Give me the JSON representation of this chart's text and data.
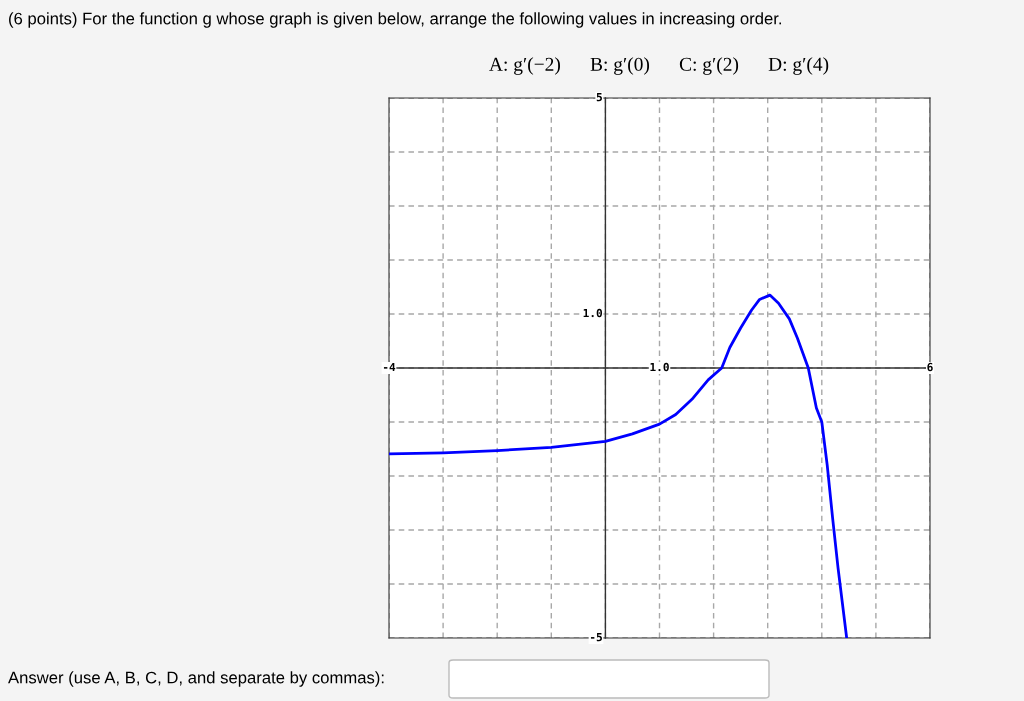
{
  "chart_data": {
    "type": "line",
    "title": "(6 points) For the function g whose graph is given below, arrange the following values in increasing order.",
    "subtitle": "A: g′(−2)      B: g′(0)      C: g′(2)      D: g′(4)",
    "annotations": [
      "Answer (use A, B, C, D, and separate by commas):"
    ],
    "x": [
      -4,
      -3,
      -2,
      -1,
      0,
      0.5,
      1,
      1.3,
      1.6,
      1.9,
      2.15,
      2.3,
      2.5,
      2.7,
      2.85,
      3.04,
      3.2,
      3.4,
      3.55,
      3.75,
      3.9,
      4.0,
      4.1,
      4.2,
      4.3,
      4.46
    ],
    "series": [
      {
        "color": "#0000ff",
        "values": [
          -1.59,
          -1.57,
          -1.53,
          -1.47,
          -1.36,
          -1.22,
          -1.04,
          -0.86,
          -0.58,
          -0.22,
          0,
          0.38,
          0.74,
          1.07,
          1.27,
          1.35,
          1.2,
          0.91,
          0.55,
          0,
          -0.74,
          -1.0,
          -1.8,
          -2.78,
          -3.7,
          -5
        ]
      }
    ],
    "xlim": [
      -4,
      6
    ],
    "ylim": [
      -5,
      5
    ],
    "xticks": [
      {
        "value": -4,
        "label": "-4"
      },
      {
        "value": -3,
        "label": null
      },
      {
        "value": -2,
        "label": null
      },
      {
        "value": -1,
        "label": null
      },
      {
        "value": 0,
        "label": null
      },
      {
        "value": 1,
        "label": "1.0"
      },
      {
        "value": 2,
        "label": null
      },
      {
        "value": 3,
        "label": null
      },
      {
        "value": 4,
        "label": null
      },
      {
        "value": 5,
        "label": null
      },
      {
        "value": 6,
        "label": "6"
      }
    ],
    "yticks": [
      {
        "value": -5,
        "label": "-5"
      },
      {
        "value": -4,
        "label": null
      },
      {
        "value": -3,
        "label": null
      },
      {
        "value": -2,
        "label": null
      },
      {
        "value": -1,
        "label": null
      },
      {
        "value": 0,
        "label": null
      },
      {
        "value": 1,
        "label": "1.0"
      },
      {
        "value": 2,
        "label": null
      },
      {
        "value": 3,
        "label": null
      },
      {
        "value": 4,
        "label": null
      },
      {
        "value": 5,
        "label": "5"
      }
    ],
    "grid": true,
    "legend": false,
    "marker": "none",
    "line_style": "solid"
  }
}
